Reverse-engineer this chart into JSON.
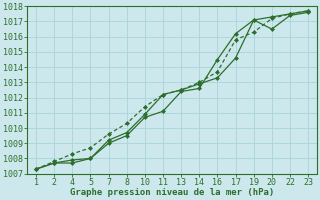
{
  "title": "Graphe pression niveau de la mer (hPa)",
  "bg_color": "#cce8ec",
  "grid_color": "#aad4d8",
  "line_color": "#2d6e2d",
  "marker_color": "#2d6e2d",
  "x_positions": [
    1,
    2,
    3,
    4,
    5,
    6,
    7,
    8,
    9,
    10,
    11,
    12,
    13,
    14,
    15,
    16
  ],
  "x_tick_positions": [
    1,
    2,
    3,
    4,
    5,
    6,
    7,
    8,
    9,
    10,
    11,
    12,
    13,
    14,
    15,
    16
  ],
  "x_labels": [
    "1",
    "2",
    "4",
    "5",
    "7",
    "8",
    "10",
    "11",
    "13",
    "14",
    "16",
    "17",
    "19",
    "20",
    "22",
    "23"
  ],
  "ylim": [
    1007,
    1018
  ],
  "xlim": [
    0.5,
    16.5
  ],
  "yticks": [
    1007,
    1008,
    1009,
    1010,
    1011,
    1012,
    1013,
    1014,
    1015,
    1016,
    1017,
    1018
  ],
  "series1_y": [
    1007.3,
    1007.7,
    1007.7,
    1008.0,
    1009.2,
    1009.7,
    1010.9,
    1012.2,
    1012.5,
    1012.9,
    1013.3,
    1014.6,
    1017.1,
    1016.5,
    1017.4,
    1017.6
  ],
  "series2_y": [
    1007.3,
    1007.8,
    1008.3,
    1008.7,
    1009.6,
    1010.3,
    1011.4,
    1012.2,
    1012.5,
    1013.0,
    1013.7,
    1015.8,
    1016.3,
    1017.2,
    1017.5,
    1017.7
  ],
  "series3_y": [
    1007.3,
    1007.7,
    1007.9,
    1008.0,
    1009.0,
    1009.5,
    1010.7,
    1011.1,
    1012.4,
    1012.6,
    1014.5,
    1016.2,
    1017.1,
    1017.3,
    1017.5,
    1017.7
  ],
  "ylabel_fontsize": 6,
  "xlabel_fontsize": 6,
  "title_fontsize": 6.5
}
